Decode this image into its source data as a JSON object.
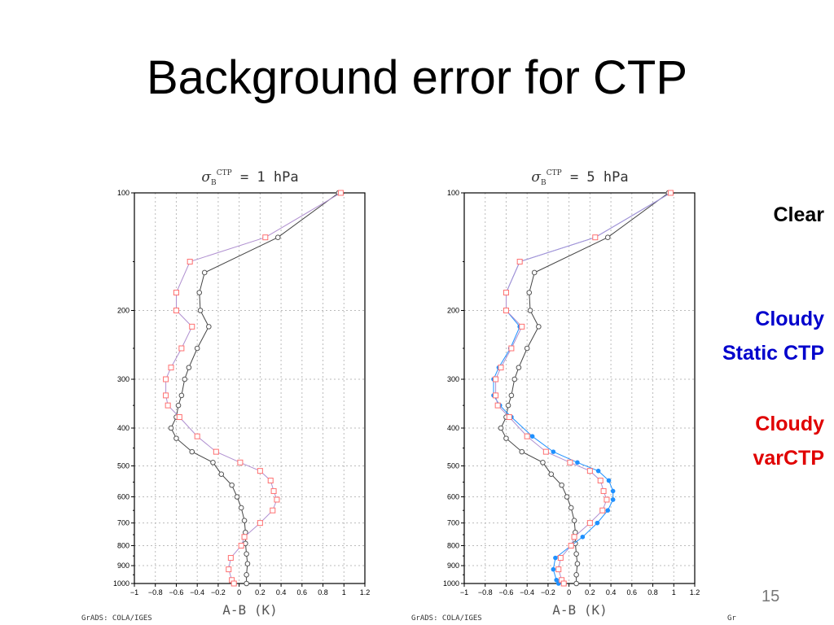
{
  "slide": {
    "title": "Background error for CTP",
    "page_number": "15",
    "credits": [
      "GrADS: COLA/IGES",
      "GrADS: COLA/IGES",
      "Gr"
    ]
  },
  "legend": [
    {
      "label": "Clear",
      "color": "#000000"
    },
    {
      "label": "Cloudy\nStatic CTP",
      "color": "#0000cc"
    },
    {
      "label": "Cloudy\nvarCTP",
      "color": "#e00000"
    }
  ],
  "colors": {
    "clear": "#555555",
    "cloudy_static": "#1e90ff",
    "cloudy_varctp": "#ff7070",
    "cloudy_varctp_line": "#b090d0"
  },
  "chart_data": [
    {
      "type": "line",
      "title": "σB CTP = 1 hPa",
      "title_sigma": "σ",
      "title_sub": "B",
      "title_sup": "CTP",
      "title_rest": " = 1 hPa",
      "xlabel": "A-B (K)",
      "ylabel": "",
      "xlim": [
        -1,
        1.2
      ],
      "ylim": [
        1000,
        100
      ],
      "y_scale": "log",
      "grid": true,
      "x_ticks": [
        "−1",
        "−0.8",
        "−0.6",
        "−0.4",
        "−0.2",
        "0",
        "0.2",
        "0.4",
        "0.6",
        "0.8",
        "1",
        "1.2"
      ],
      "y_ticks": [
        100,
        200,
        300,
        400,
        500,
        600,
        700,
        800,
        900,
        1000
      ],
      "series": [
        {
          "name": "Clear",
          "marker": "circle",
          "points": [
            [
              0.95,
              100
            ],
            [
              0.37,
              130
            ],
            [
              -0.33,
              160
            ],
            [
              -0.38,
              180
            ],
            [
              -0.37,
              200
            ],
            [
              -0.29,
              220
            ],
            [
              -0.4,
              250
            ],
            [
              -0.48,
              280
            ],
            [
              -0.52,
              300
            ],
            [
              -0.55,
              330
            ],
            [
              -0.58,
              350
            ],
            [
              -0.6,
              375
            ],
            [
              -0.65,
              400
            ],
            [
              -0.6,
              425
            ],
            [
              -0.45,
              460
            ],
            [
              -0.25,
              490
            ],
            [
              -0.17,
              525
            ],
            [
              -0.07,
              560
            ],
            [
              -0.02,
              600
            ],
            [
              0.02,
              640
            ],
            [
              0.05,
              690
            ],
            [
              0.06,
              740
            ],
            [
              0.06,
              790
            ],
            [
              0.07,
              840
            ],
            [
              0.08,
              890
            ],
            [
              0.07,
              950
            ],
            [
              0.07,
              1000
            ]
          ]
        },
        {
          "name": "Cloudy varCTP",
          "marker": "square",
          "points": [
            [
              0.97,
              100
            ],
            [
              0.25,
              130
            ],
            [
              -0.47,
              150
            ],
            [
              -0.6,
              180
            ],
            [
              -0.6,
              200
            ],
            [
              -0.45,
              220
            ],
            [
              -0.55,
              250
            ],
            [
              -0.65,
              280
            ],
            [
              -0.7,
              300
            ],
            [
              -0.7,
              330
            ],
            [
              -0.68,
              350
            ],
            [
              -0.57,
              375
            ],
            [
              -0.4,
              420
            ],
            [
              -0.22,
              460
            ],
            [
              0.01,
              490
            ],
            [
              0.2,
              515
            ],
            [
              0.3,
              545
            ],
            [
              0.33,
              580
            ],
            [
              0.36,
              610
            ],
            [
              0.32,
              650
            ],
            [
              0.2,
              700
            ],
            [
              0.05,
              760
            ],
            [
              0.02,
              800
            ],
            [
              -0.08,
              860
            ],
            [
              -0.1,
              920
            ],
            [
              -0.07,
              980
            ],
            [
              -0.05,
              1000
            ]
          ]
        }
      ]
    },
    {
      "type": "line",
      "title": "σB CTP = 5 hPa",
      "title_sigma": "σ",
      "title_sub": "B",
      "title_sup": "CTP",
      "title_rest": " = 5 hPa",
      "xlabel": "A-B (K)",
      "ylabel": "",
      "xlim": [
        -1,
        1.2
      ],
      "ylim": [
        1000,
        100
      ],
      "y_scale": "log",
      "grid": true,
      "x_ticks": [
        "−1",
        "−0.8",
        "−0.6",
        "−0.4",
        "−0.2",
        "0",
        "0.2",
        "0.4",
        "0.6",
        "0.8",
        "1",
        "1.2"
      ],
      "y_ticks": [
        100,
        200,
        300,
        400,
        500,
        600,
        700,
        800,
        900,
        1000
      ],
      "series": [
        {
          "name": "Clear",
          "marker": "circle",
          "points": [
            [
              0.95,
              100
            ],
            [
              0.37,
              130
            ],
            [
              -0.33,
              160
            ],
            [
              -0.38,
              180
            ],
            [
              -0.37,
              200
            ],
            [
              -0.29,
              220
            ],
            [
              -0.4,
              250
            ],
            [
              -0.48,
              280
            ],
            [
              -0.52,
              300
            ],
            [
              -0.55,
              330
            ],
            [
              -0.58,
              350
            ],
            [
              -0.6,
              375
            ],
            [
              -0.65,
              400
            ],
            [
              -0.6,
              425
            ],
            [
              -0.45,
              460
            ],
            [
              -0.25,
              490
            ],
            [
              -0.17,
              525
            ],
            [
              -0.07,
              560
            ],
            [
              -0.02,
              600
            ],
            [
              0.02,
              640
            ],
            [
              0.05,
              690
            ],
            [
              0.06,
              740
            ],
            [
              0.06,
              790
            ],
            [
              0.07,
              840
            ],
            [
              0.08,
              890
            ],
            [
              0.07,
              950
            ],
            [
              0.07,
              1000
            ]
          ]
        },
        {
          "name": "Cloudy Static CTP",
          "marker": "dot",
          "points": [
            [
              0.97,
              100
            ],
            [
              0.25,
              130
            ],
            [
              -0.47,
              150
            ],
            [
              -0.6,
              180
            ],
            [
              -0.6,
              200
            ],
            [
              -0.47,
              220
            ],
            [
              -0.56,
              250
            ],
            [
              -0.67,
              280
            ],
            [
              -0.72,
              300
            ],
            [
              -0.72,
              330
            ],
            [
              -0.66,
              350
            ],
            [
              -0.55,
              375
            ],
            [
              -0.35,
              420
            ],
            [
              -0.15,
              460
            ],
            [
              0.08,
              490
            ],
            [
              0.28,
              515
            ],
            [
              0.38,
              545
            ],
            [
              0.42,
              580
            ],
            [
              0.42,
              610
            ],
            [
              0.37,
              650
            ],
            [
              0.27,
              700
            ],
            [
              0.13,
              760
            ],
            [
              0.02,
              800
            ],
            [
              -0.13,
              860
            ],
            [
              -0.15,
              920
            ],
            [
              -0.12,
              980
            ],
            [
              -0.1,
              1000
            ]
          ]
        },
        {
          "name": "Cloudy varCTP",
          "marker": "square",
          "points": [
            [
              0.97,
              100
            ],
            [
              0.25,
              130
            ],
            [
              -0.47,
              150
            ],
            [
              -0.6,
              180
            ],
            [
              -0.6,
              200
            ],
            [
              -0.45,
              220
            ],
            [
              -0.55,
              250
            ],
            [
              -0.65,
              280
            ],
            [
              -0.7,
              300
            ],
            [
              -0.7,
              330
            ],
            [
              -0.68,
              350
            ],
            [
              -0.57,
              375
            ],
            [
              -0.4,
              420
            ],
            [
              -0.22,
              460
            ],
            [
              0.01,
              490
            ],
            [
              0.2,
              515
            ],
            [
              0.3,
              545
            ],
            [
              0.33,
              580
            ],
            [
              0.36,
              610
            ],
            [
              0.32,
              650
            ],
            [
              0.2,
              700
            ],
            [
              0.05,
              760
            ],
            [
              0.02,
              800
            ],
            [
              -0.08,
              860
            ],
            [
              -0.1,
              920
            ],
            [
              -0.07,
              980
            ],
            [
              -0.05,
              1000
            ]
          ]
        }
      ]
    }
  ]
}
